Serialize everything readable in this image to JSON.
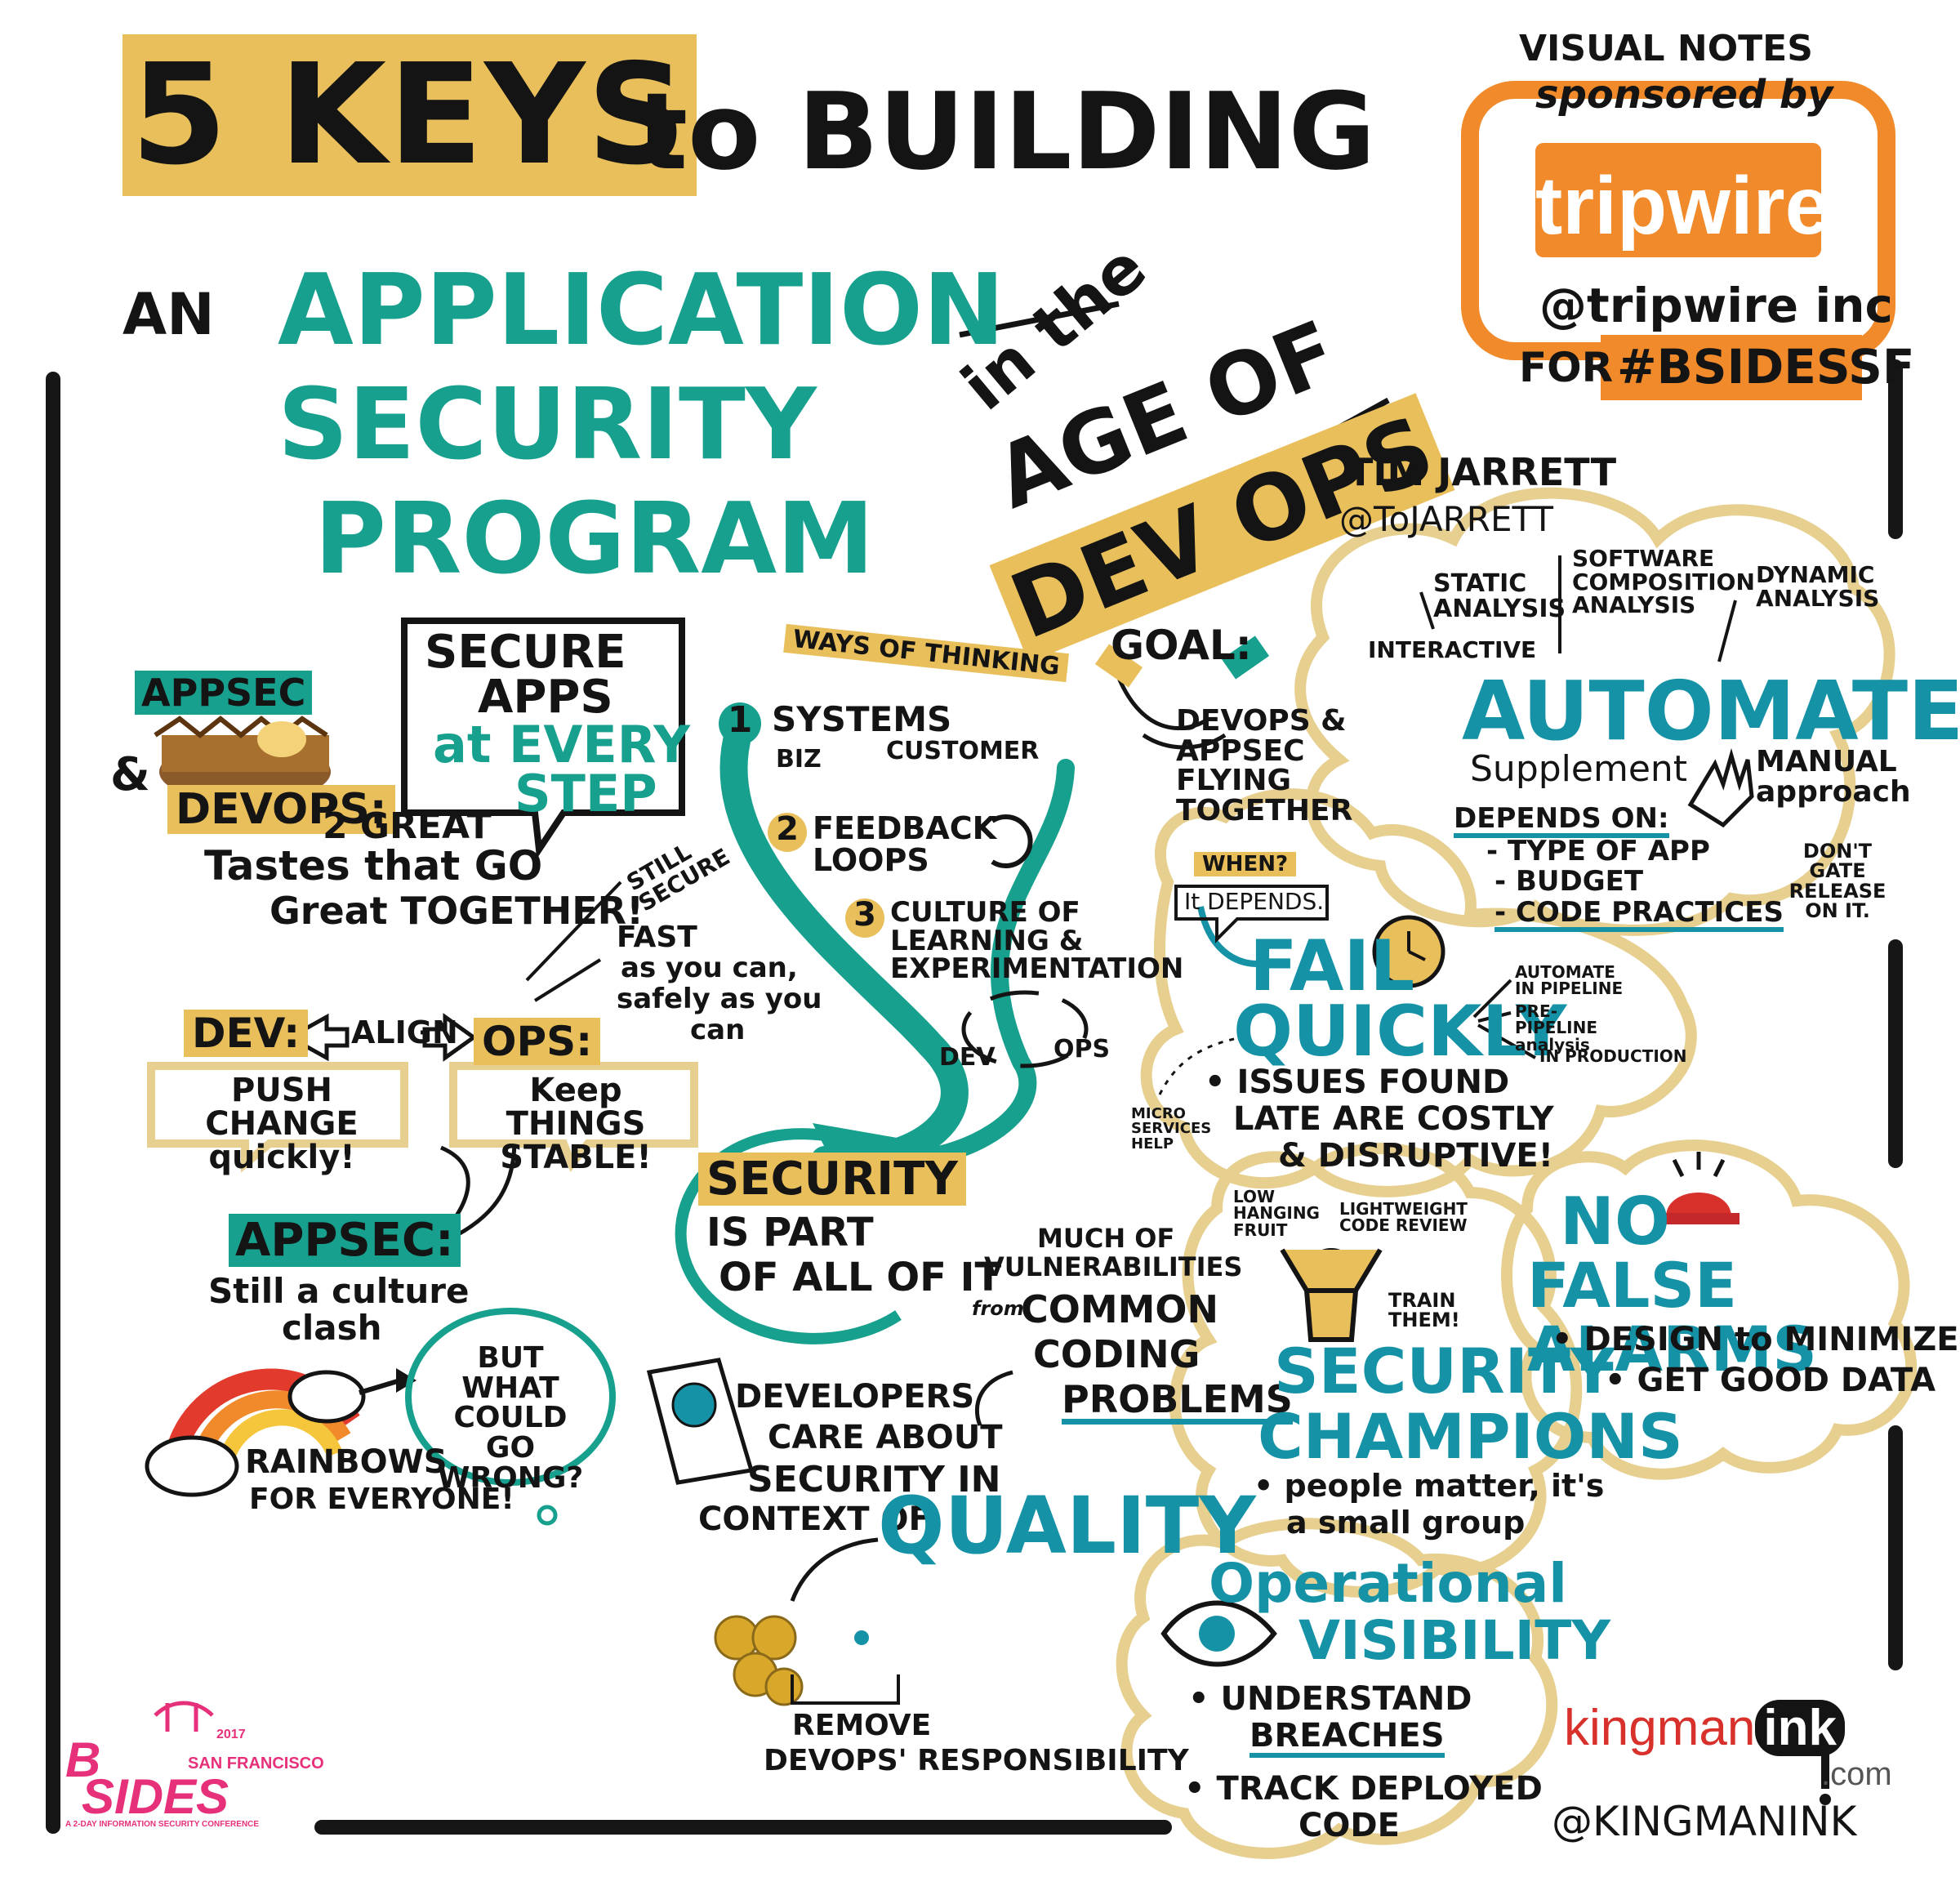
{
  "colors": {
    "ink": "#141414",
    "teal": "#17a08d",
    "blue": "#1592a6",
    "gold": "#e8bf5a",
    "orange": "#f08a2a",
    "pink": "#e6307a",
    "red": "#d8302a"
  },
  "title": {
    "five_keys": "5 KEYS",
    "to_building": "to BUILDING",
    "an": "AN",
    "application": "APPLICATION",
    "security": "SECURITY",
    "program": "PROGRAM",
    "in_the": "in the",
    "age_of": "AGE OF",
    "devops": "DEV OPS"
  },
  "speaker": {
    "name": "TIM JARRETT",
    "handle": "@ToJARRETT"
  },
  "sponsor": {
    "visual_notes": "VISUAL NOTES",
    "sponsored_by": "sponsored by",
    "logo": "tripwire",
    "handle": "@tripwire inc",
    "for": "FOR",
    "hashtag": "#BSIDESSF"
  },
  "appsec_devops": {
    "appsec": "APPSEC",
    "amp": "&",
    "devops": "DEVOPS:",
    "line1": "2 GREAT",
    "line2": "Tastes that GO",
    "line3": "Great TOGETHER!"
  },
  "secure_apps": {
    "l1": "SECURE",
    "l2": "APPS",
    "l3": "at EVERY",
    "l4": "STEP"
  },
  "still_secure": "STILL SECURE",
  "fast": {
    "l1": "FAST",
    "l2": "as you can,",
    "l3": "safely as you",
    "l4": "can"
  },
  "align": {
    "dev": "DEV:",
    "align": "ALIGN",
    "ops": "OPS:",
    "dev_note": "PUSH CHANGE quickly!",
    "ops_note": "Keep THINGS STABLE!"
  },
  "appsec_clash": {
    "title": "APPSEC:",
    "l1": "Still a culture",
    "l2": "clash"
  },
  "rainbows": {
    "bubble": "BUT WHAT COULD GO WRONG?",
    "caption_1": "RAINBOWS",
    "caption_2": "FOR EVERYONE!"
  },
  "ways": {
    "title": "WAYS OF THINKING",
    "n1": "1",
    "i1": "SYSTEMS",
    "i1_a": "BIZ",
    "i1_b": "CUSTOMER",
    "n2": "2",
    "i2": "FEEDBACK LOOPS",
    "n3": "3",
    "i3": "CULTURE OF LEARNING & EXPERIMENTATION",
    "dev": "DEV",
    "ops": "OPS"
  },
  "security_part": {
    "l1": "SECURITY",
    "l2": "IS PART",
    "l3": "OF ALL OF IT"
  },
  "goal": {
    "label": "GOAL:",
    "text": "DEVOPS & APPSEC FLYING TOGETHER"
  },
  "automate": {
    "static": "STATIC ANALYSIS",
    "sca": "SOFTWARE COMPOSITION ANALYSIS",
    "dynamic": "DYNAMIC ANALYSIS",
    "interactive": "INTERACTIVE",
    "title": "AUTOMATE",
    "supplement": "Supplement",
    "manual": "MANUAL approach",
    "depends": "DEPENDS ON:",
    "d1": "- TYPE OF APP",
    "d2": "- BUDGET",
    "d3": "- CODE PRACTICES",
    "dont_gate": "DON'T GATE RELEASE ON IT."
  },
  "fail": {
    "when": "WHEN?",
    "depends": "It DEPENDS.",
    "title1": "FAIL",
    "title2": "QUICKLY",
    "b1": "AUTOMATE IN PIPELINE",
    "b2": "PRE-PIPELINE analysis",
    "b3": "IN PRODUCTION",
    "issues1": "• ISSUES FOUND",
    "issues2": "LATE ARE COSTLY",
    "issues3": "& DISRUPTIVE!",
    "micro": "MICRO SERVICES HELP"
  },
  "vulns": {
    "l1": "MUCH OF",
    "l2": "VULNERABILITIES",
    "from": "from",
    "l3": "COMMON",
    "l4": "CODING",
    "l5": "PROBLEMS"
  },
  "champions": {
    "low": "LOW HANGING FRUIT",
    "review": "LIGHTWEIGHT CODE REVIEW",
    "train": "TRAIN THEM!",
    "title1": "SECURITY",
    "title2": "CHAMPIONS",
    "b1": "• people matter, it's",
    "b2": "a small group"
  },
  "alarms": {
    "title1": "NO",
    "title2": "FALSE ALARMS",
    "b1": "• DESIGN to MINIMIZE",
    "b2": "• GET GOOD DATA"
  },
  "developers": {
    "l1": "DEVELOPERS",
    "l2": "CARE ABOUT",
    "l3": "SECURITY IN",
    "l4": "CONTEXT OF",
    "quality": "QUALITY"
  },
  "remove": {
    "l1": "REMOVE",
    "l2": "DEVOPS' RESPONSIBILITY"
  },
  "visibility": {
    "title1": "Operational",
    "title2": "VISIBILITY",
    "b1": "• UNDERSTAND",
    "b2": "BREACHES",
    "b3": "• TRACK DEPLOYED",
    "b4": "CODE"
  },
  "kingman": {
    "name": "kingman",
    "ink": "ink",
    "com": ".com",
    "handle": "@KINGMANINK"
  },
  "bsides": {
    "year": "2017",
    "b": "B",
    "sides": "SIDES",
    "city": "SAN FRANCISCO",
    "tagline": "A 2-DAY INFORMATION SECURITY CONFERENCE"
  }
}
